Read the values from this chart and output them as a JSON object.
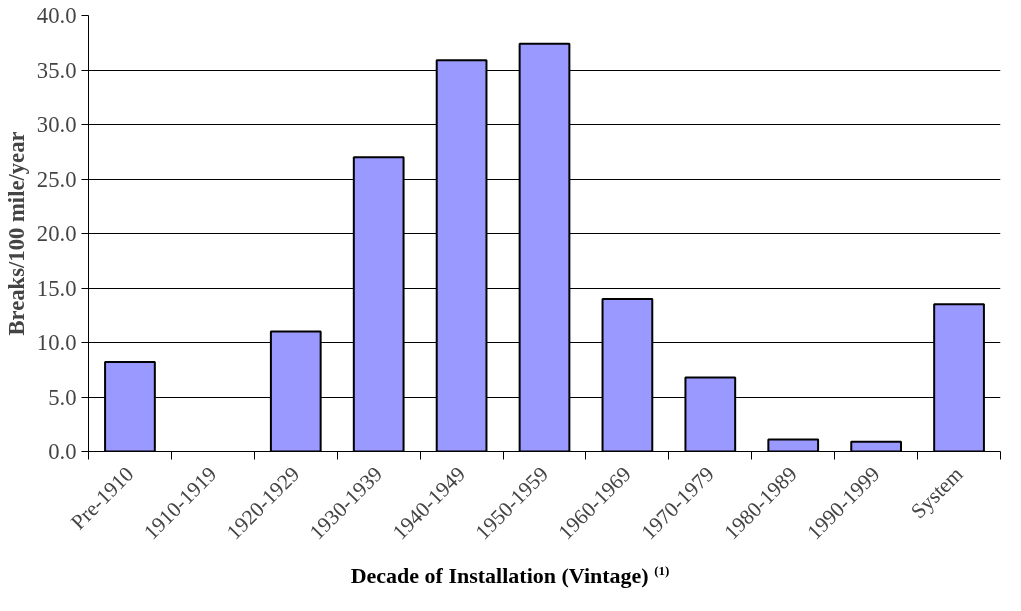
{
  "chart_data": {
    "type": "bar",
    "xlabel": "Decade of Installation (Vintage) $^{(1)}$",
    "ylabel": "Breaks/100 mile/year",
    "categories": [
      "Pre-1910",
      "1910-1919",
      "1920-1929",
      "1930-1939",
      "1940-1949",
      "1950-1959",
      "1960-1969",
      "1970-1979",
      "1980-1989",
      "1990-1999",
      "System"
    ],
    "values": [
      8.2,
      null,
      11.0,
      27.0,
      35.9,
      37.4,
      14.0,
      6.8,
      1.1,
      0.9,
      13.5
    ],
    "color": "#9999ff",
    "ylim": [
      0,
      40
    ],
    "yticks": [
      {
        "value": 0,
        "label": "0.0"
      },
      {
        "value": 5,
        "label": "5.0"
      },
      {
        "value": 10,
        "label": "10.0"
      },
      {
        "value": 15,
        "label": "15.0"
      },
      {
        "value": 20,
        "label": "20.0"
      },
      {
        "value": 25,
        "label": "25.0"
      },
      {
        "value": 30,
        "label": "30.0"
      },
      {
        "value": 35,
        "label": "35.0"
      },
      {
        "value": 40,
        "label": "40.0"
      }
    ],
    "grid": "y"
  }
}
